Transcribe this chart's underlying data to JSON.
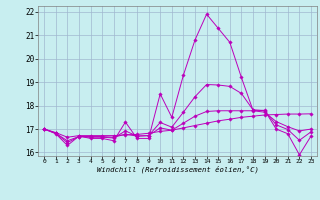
{
  "title": "",
  "xlabel": "Windchill (Refroidissement éolien,°C)",
  "ylabel": "",
  "background_color": "#c8eef0",
  "grid_color": "#a0b8d0",
  "line_color": "#bb00bb",
  "xlim": [
    -0.5,
    23.5
  ],
  "ylim": [
    15.85,
    22.25
  ],
  "yticks": [
    16,
    17,
    18,
    19,
    20,
    21,
    22
  ],
  "xtick_labels": [
    "0",
    "1",
    "2",
    "3",
    "4",
    "5",
    "6",
    "7",
    "8",
    "9",
    "10",
    "11",
    "12",
    "13",
    "14",
    "15",
    "16",
    "17",
    "18",
    "19",
    "20",
    "21",
    "22",
    "23"
  ],
  "xtick_positions": [
    0,
    1,
    2,
    3,
    4,
    5,
    6,
    7,
    8,
    9,
    10,
    11,
    12,
    13,
    14,
    15,
    16,
    17,
    18,
    19,
    20,
    21,
    22,
    23
  ],
  "series": [
    {
      "x": [
        0,
        1,
        2,
        3,
        4,
        5,
        6,
        7,
        8,
        9,
        10,
        11,
        12,
        13,
        14,
        15,
        16,
        17,
        18,
        19,
        20,
        21,
        22,
        23
      ],
      "y": [
        17.0,
        16.8,
        16.3,
        16.7,
        16.6,
        16.6,
        16.5,
        17.3,
        16.6,
        16.6,
        18.5,
        17.5,
        19.3,
        20.8,
        21.9,
        21.3,
        20.7,
        19.2,
        17.8,
        17.8,
        17.0,
        16.8,
        15.9,
        16.7
      ]
    },
    {
      "x": [
        0,
        1,
        2,
        3,
        4,
        5,
        6,
        7,
        8,
        9,
        10,
        11,
        12,
        13,
        14,
        15,
        16,
        17,
        18,
        19,
        20,
        21,
        22,
        23
      ],
      "y": [
        17.0,
        16.85,
        16.65,
        16.72,
        16.72,
        16.72,
        16.72,
        16.75,
        16.77,
        16.82,
        16.9,
        16.95,
        17.05,
        17.15,
        17.25,
        17.35,
        17.42,
        17.5,
        17.55,
        17.6,
        17.62,
        17.64,
        17.64,
        17.65
      ]
    },
    {
      "x": [
        0,
        1,
        2,
        3,
        4,
        5,
        6,
        7,
        8,
        9,
        10,
        11,
        12,
        13,
        14,
        15,
        16,
        17,
        18,
        19,
        20,
        21,
        22,
        23
      ],
      "y": [
        17.0,
        16.82,
        16.5,
        16.68,
        16.68,
        16.68,
        16.65,
        16.78,
        16.7,
        16.72,
        17.05,
        16.95,
        17.25,
        17.55,
        17.75,
        17.78,
        17.78,
        17.78,
        17.78,
        17.72,
        17.32,
        17.1,
        16.92,
        17.0
      ]
    },
    {
      "x": [
        0,
        1,
        2,
        3,
        4,
        5,
        6,
        7,
        8,
        9,
        10,
        11,
        12,
        13,
        14,
        15,
        16,
        17,
        18,
        19,
        20,
        21,
        22,
        23
      ],
      "y": [
        17.0,
        16.82,
        16.42,
        16.68,
        16.65,
        16.65,
        16.62,
        16.92,
        16.7,
        16.72,
        17.28,
        17.08,
        17.72,
        18.38,
        18.9,
        18.88,
        18.82,
        18.52,
        17.82,
        17.78,
        17.18,
        16.98,
        16.52,
        16.88
      ]
    }
  ]
}
